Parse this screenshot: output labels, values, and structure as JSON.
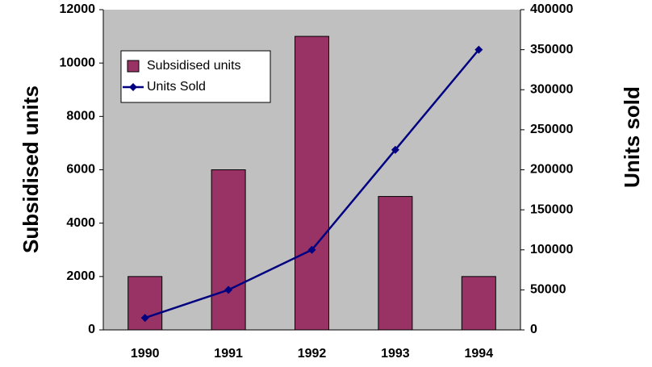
{
  "chart_data": {
    "type": "combo",
    "categories": [
      "1990",
      "1991",
      "1992",
      "1993",
      "1994"
    ],
    "ylabel": "Subsidised units",
    "y2label": "Units sold",
    "ylim": [
      0,
      12000
    ],
    "yticks": [
      0,
      2000,
      4000,
      6000,
      8000,
      10000,
      12000
    ],
    "y2lim": [
      0,
      400000
    ],
    "y2ticks": [
      0,
      50000,
      100000,
      150000,
      200000,
      250000,
      300000,
      350000,
      400000
    ],
    "plot_background": "#c0c0c0",
    "series": [
      {
        "name": "Subsidised units",
        "type": "bar",
        "color": "#993366",
        "values": [
          2000,
          6000,
          11000,
          5000,
          2000
        ]
      },
      {
        "name": "Units Sold",
        "type": "line",
        "axis": "y2",
        "color": "#000080",
        "values": [
          15000,
          50000,
          100000,
          225000,
          350000
        ]
      }
    ]
  }
}
